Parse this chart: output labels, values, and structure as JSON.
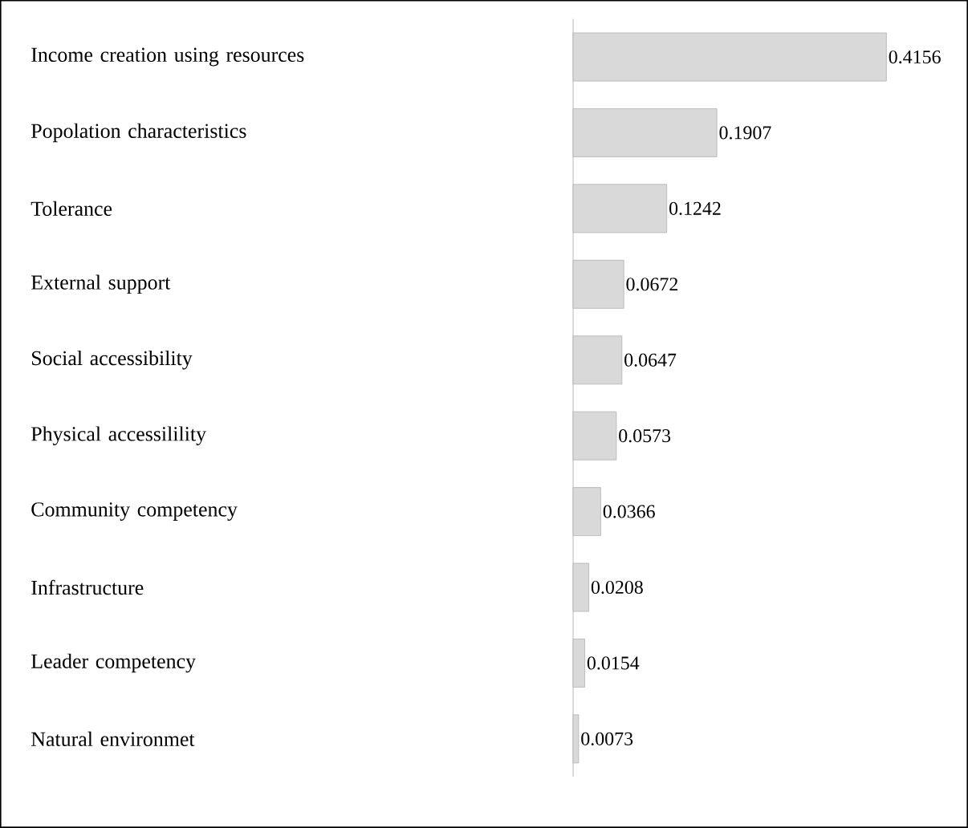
{
  "chart_data": {
    "type": "bar",
    "orientation": "horizontal",
    "data_labels": true,
    "color": "#d9d9d9",
    "categories": [
      "Income creation using resources",
      "Popolation characteristics",
      "Tolerance",
      "External support",
      "Social accessibility",
      "Physical accessilility",
      "Community competency",
      "Infrastructure",
      "Leader competency",
      "Natural environmet"
    ],
    "values": [
      0.4156,
      0.1907,
      0.1242,
      0.0672,
      0.0647,
      0.0573,
      0.0366,
      0.0208,
      0.0154,
      0.0073
    ]
  }
}
